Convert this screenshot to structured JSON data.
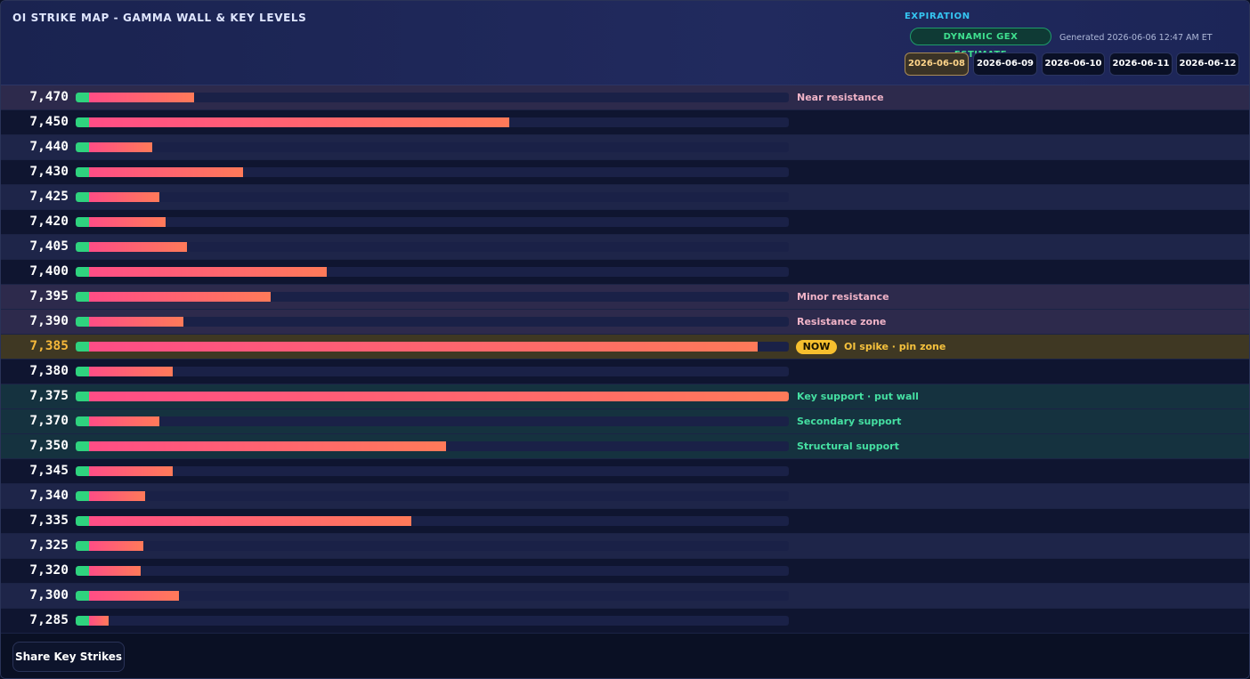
{
  "header": {
    "title": "OI STRIKE MAP - GAMMA WALL & KEY LEVELS",
    "expiration_label": "EXPIRATION",
    "gex_badge": "DYNAMIC GEX ESTIMATE",
    "generated": "Generated 2026-06-06 12:47 AM ET",
    "expirations": [
      {
        "label": "2026-06-08",
        "active": true
      },
      {
        "label": "2026-06-09",
        "active": false
      },
      {
        "label": "2026-06-10",
        "active": false
      },
      {
        "label": "2026-06-11",
        "active": false
      },
      {
        "label": "2026-06-12",
        "active": false
      }
    ]
  },
  "colors": {
    "bar_start": "#ff4d86",
    "bar_end": "#ff7a59",
    "call_marker": "#2fd37e",
    "now": "#f6bf2e",
    "support_text": "#45e0a2",
    "resistance_text": "#f1b4c8"
  },
  "strikes": [
    {
      "strike": "7,470",
      "oi_fraction": 0.15,
      "note": "Near resistance",
      "zone": "resist"
    },
    {
      "strike": "7,450",
      "oi_fraction": 0.6,
      "note": "",
      "zone": ""
    },
    {
      "strike": "7,440",
      "oi_fraction": 0.09,
      "note": "",
      "zone": ""
    },
    {
      "strike": "7,430",
      "oi_fraction": 0.22,
      "note": "",
      "zone": ""
    },
    {
      "strike": "7,425",
      "oi_fraction": 0.1,
      "note": "",
      "zone": ""
    },
    {
      "strike": "7,420",
      "oi_fraction": 0.11,
      "note": "",
      "zone": ""
    },
    {
      "strike": "7,405",
      "oi_fraction": 0.14,
      "note": "",
      "zone": ""
    },
    {
      "strike": "7,400",
      "oi_fraction": 0.34,
      "note": "",
      "zone": ""
    },
    {
      "strike": "7,395",
      "oi_fraction": 0.26,
      "note": "Minor resistance",
      "zone": "resist"
    },
    {
      "strike": "7,390",
      "oi_fraction": 0.135,
      "note": "Resistance zone",
      "zone": "resist"
    },
    {
      "strike": "7,385",
      "oi_fraction": 0.955,
      "note": "OI spike · pin zone",
      "zone": "now",
      "badge": "NOW"
    },
    {
      "strike": "7,380",
      "oi_fraction": 0.12,
      "note": "",
      "zone": ""
    },
    {
      "strike": "7,375",
      "oi_fraction": 1.0,
      "note": "Key support · put wall",
      "zone": "support"
    },
    {
      "strike": "7,370",
      "oi_fraction": 0.1,
      "note": "Secondary support",
      "zone": "support"
    },
    {
      "strike": "7,350",
      "oi_fraction": 0.51,
      "note": "Structural support",
      "zone": "support"
    },
    {
      "strike": "7,345",
      "oi_fraction": 0.12,
      "note": "",
      "zone": ""
    },
    {
      "strike": "7,340",
      "oi_fraction": 0.08,
      "note": "",
      "zone": ""
    },
    {
      "strike": "7,335",
      "oi_fraction": 0.46,
      "note": "",
      "zone": ""
    },
    {
      "strike": "7,325",
      "oi_fraction": 0.078,
      "note": "",
      "zone": ""
    },
    {
      "strike": "7,320",
      "oi_fraction": 0.074,
      "note": "",
      "zone": ""
    },
    {
      "strike": "7,300",
      "oi_fraction": 0.128,
      "note": "",
      "zone": ""
    },
    {
      "strike": "7,285",
      "oi_fraction": 0.028,
      "note": "",
      "zone": ""
    }
  ],
  "footer": {
    "share_label": "Share Key Strikes"
  }
}
